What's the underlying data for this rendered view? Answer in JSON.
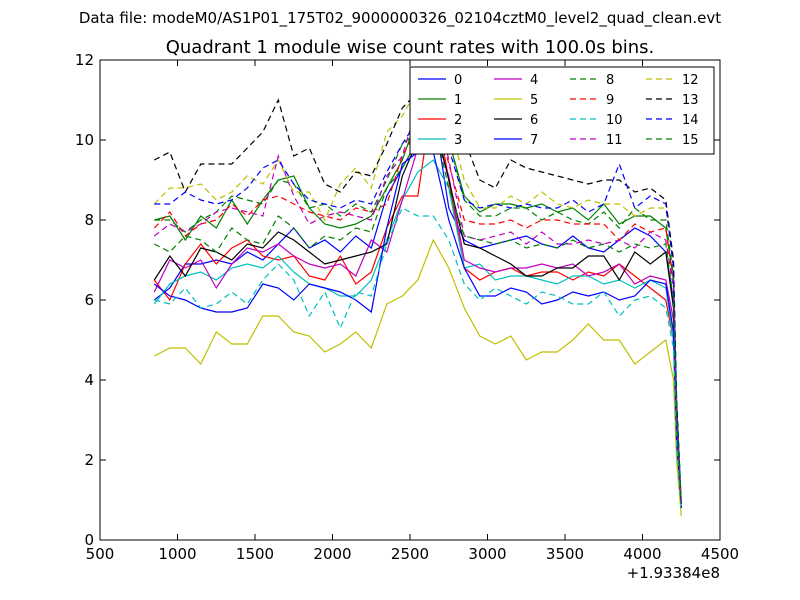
{
  "suptitle": "Data file: modeM0/AS1P01_175T02_9000000326_02104cztM0_level2_quad_clean.evt",
  "chart_data": {
    "type": "line",
    "title": "Quadrant 1 module wise count rates with 100.0s bins.",
    "xlabel": "",
    "ylabel": "",
    "x_offset_label": "+1.93384e8",
    "xlim": [
      500,
      4500
    ],
    "ylim": [
      0,
      12
    ],
    "xticks": [
      500,
      1000,
      1500,
      2000,
      2500,
      3000,
      3500,
      4000,
      4500
    ],
    "yticks": [
      0,
      2,
      4,
      6,
      8,
      10,
      12
    ],
    "legend_position": "top-right",
    "legend_columns": 4,
    "x": [
      850,
      950,
      1050,
      1150,
      1250,
      1350,
      1450,
      1550,
      1650,
      1750,
      1850,
      1950,
      2050,
      2150,
      2250,
      2350,
      2450,
      2550,
      2650,
      2750,
      2850,
      2950,
      3050,
      3150,
      3250,
      3350,
      3450,
      3550,
      3650,
      3750,
      3850,
      3950,
      4050,
      4150,
      4200,
      4220,
      4250
    ],
    "series": [
      {
        "name": "0",
        "color": "#0000ff",
        "dash": "solid",
        "values": [
          6.0,
          6.3,
          6.9,
          6.9,
          7.0,
          6.9,
          7.2,
          7.0,
          7.4,
          7.8,
          7.3,
          7.5,
          7.2,
          7.6,
          7.3,
          8.6,
          9.3,
          10.0,
          10.8,
          8.3,
          7.5,
          7.3,
          7.4,
          7.5,
          7.6,
          7.4,
          7.3,
          7.6,
          7.3,
          7.2,
          7.5,
          7.8,
          7.6,
          7.2,
          6.0,
          3.0,
          0.9
        ]
      },
      {
        "name": "1",
        "color": "#008000",
        "dash": "solid",
        "values": [
          8.0,
          8.1,
          7.5,
          8.1,
          7.8,
          8.5,
          7.9,
          8.5,
          9.0,
          9.1,
          8.3,
          7.9,
          7.8,
          7.9,
          8.1,
          8.8,
          9.5,
          10.6,
          11.5,
          10.0,
          8.6,
          8.2,
          8.4,
          8.4,
          8.3,
          8.4,
          8.2,
          8.3,
          8.0,
          8.4,
          7.9,
          8.1,
          8.1,
          7.8,
          6.5,
          3.5,
          0.9
        ]
      },
      {
        "name": "2",
        "color": "#ff0000",
        "dash": "solid",
        "values": [
          6.5,
          6.0,
          6.9,
          7.4,
          6.9,
          7.3,
          7.5,
          7.1,
          7.0,
          7.1,
          6.6,
          6.5,
          7.1,
          6.4,
          6.7,
          7.8,
          8.6,
          8.6,
          11.2,
          9.0,
          6.8,
          6.5,
          6.7,
          6.8,
          6.6,
          6.7,
          6.7,
          6.5,
          6.7,
          6.6,
          6.9,
          6.6,
          6.3,
          6.0,
          5.0,
          2.5,
          0.9
        ]
      },
      {
        "name": "3",
        "color": "#00bfbf",
        "dash": "solid",
        "values": [
          5.9,
          6.4,
          6.6,
          6.7,
          6.5,
          6.8,
          6.9,
          6.8,
          7.1,
          6.7,
          6.4,
          6.3,
          6.1,
          6.1,
          6.5,
          7.5,
          8.5,
          9.2,
          9.5,
          8.8,
          6.8,
          6.9,
          6.5,
          6.6,
          6.6,
          6.5,
          6.4,
          6.6,
          6.6,
          6.4,
          6.5,
          6.3,
          6.5,
          6.3,
          5.0,
          2.5,
          0.8
        ]
      },
      {
        "name": "4",
        "color": "#bf00bf",
        "dash": "solid",
        "values": [
          6.2,
          7.0,
          6.8,
          7.0,
          6.3,
          6.9,
          7.3,
          7.2,
          7.4,
          7.1,
          6.9,
          6.8,
          6.9,
          6.6,
          7.5,
          7.2,
          8.5,
          9.8,
          10.3,
          9.1,
          7.0,
          6.8,
          6.7,
          6.8,
          6.8,
          6.9,
          6.8,
          6.9,
          6.6,
          6.7,
          6.9,
          6.4,
          6.6,
          6.5,
          5.5,
          2.5,
          0.9
        ]
      },
      {
        "name": "5",
        "color": "#bfbf00",
        "dash": "solid",
        "values": [
          4.6,
          4.8,
          4.8,
          4.4,
          5.2,
          4.9,
          4.9,
          5.6,
          5.6,
          5.2,
          5.1,
          4.7,
          4.9,
          5.2,
          4.8,
          5.9,
          6.1,
          6.5,
          7.5,
          6.8,
          5.8,
          5.1,
          4.9,
          5.1,
          4.5,
          4.7,
          4.7,
          5.0,
          5.4,
          5.0,
          5.0,
          4.4,
          4.7,
          5.0,
          4.0,
          2.0,
          0.6
        ]
      },
      {
        "name": "6",
        "color": "#000000",
        "dash": "solid",
        "values": [
          6.5,
          7.1,
          6.6,
          7.3,
          7.2,
          7.0,
          7.4,
          7.3,
          7.7,
          7.5,
          7.2,
          6.9,
          7.0,
          7.1,
          7.2,
          7.4,
          9.1,
          10.0,
          10.6,
          9.0,
          7.4,
          7.3,
          7.1,
          6.9,
          6.6,
          6.6,
          6.8,
          6.8,
          7.1,
          7.1,
          6.5,
          7.2,
          6.9,
          7.2,
          5.8,
          2.8,
          0.9
        ]
      },
      {
        "name": "7",
        "color": "#0000ff",
        "dash": "solid",
        "values": [
          6.4,
          6.1,
          6.0,
          5.8,
          5.7,
          5.7,
          5.8,
          6.4,
          6.3,
          6.0,
          6.4,
          6.3,
          6.2,
          6.0,
          5.7,
          7.8,
          9.4,
          9.7,
          9.7,
          8.0,
          6.8,
          6.1,
          6.1,
          6.3,
          6.2,
          5.9,
          6.0,
          6.2,
          6.1,
          6.2,
          6.0,
          6.1,
          6.5,
          6.4,
          5.2,
          2.5,
          0.8
        ]
      },
      {
        "name": "8",
        "color": "#008000",
        "dash": "dashed",
        "values": [
          8.0,
          8.0,
          7.7,
          8.0,
          8.2,
          8.6,
          8.5,
          8.4,
          9.0,
          8.9,
          8.3,
          8.4,
          8.1,
          8.4,
          8.2,
          9.0,
          9.9,
          10.2,
          11.2,
          10.0,
          8.5,
          8.1,
          8.1,
          8.3,
          8.3,
          8.0,
          8.2,
          8.0,
          7.9,
          8.2,
          7.8,
          8.3,
          8.0,
          8.0,
          6.6,
          3.4,
          0.9
        ]
      },
      {
        "name": "9",
        "color": "#ff0000",
        "dash": "dashed",
        "values": [
          7.8,
          8.2,
          7.6,
          7.9,
          8.0,
          8.4,
          8.1,
          8.5,
          8.6,
          8.4,
          8.2,
          8.1,
          8.0,
          8.3,
          8.2,
          8.4,
          9.6,
          10.3,
          11.0,
          9.4,
          8.0,
          7.9,
          7.9,
          8.0,
          7.8,
          8.0,
          8.0,
          7.9,
          7.9,
          7.9,
          7.5,
          7.9,
          7.7,
          7.8,
          6.4,
          3.2,
          0.9
        ]
      },
      {
        "name": "10",
        "color": "#00bfbf",
        "dash": "dashed",
        "values": [
          6.0,
          5.9,
          6.3,
          5.8,
          5.9,
          6.2,
          5.9,
          6.5,
          6.9,
          6.5,
          5.6,
          6.2,
          5.3,
          6.2,
          6.1,
          7.4,
          8.3,
          8.1,
          8.1,
          7.5,
          6.4,
          6.0,
          6.3,
          6.1,
          5.9,
          6.2,
          6.1,
          5.9,
          5.9,
          6.2,
          5.6,
          6.0,
          6.1,
          5.8,
          4.8,
          2.4,
          0.8
        ]
      },
      {
        "name": "11",
        "color": "#bf00bf",
        "dash": "dashed",
        "values": [
          7.6,
          7.9,
          7.7,
          7.9,
          8.2,
          8.3,
          8.2,
          8.1,
          9.6,
          8.6,
          7.9,
          8.1,
          8.2,
          8.1,
          8.0,
          9.1,
          9.6,
          10.9,
          11.3,
          9.5,
          7.6,
          7.5,
          7.6,
          7.7,
          7.4,
          7.7,
          7.4,
          7.4,
          7.5,
          7.4,
          7.5,
          7.3,
          7.7,
          7.5,
          6.3,
          3.1,
          0.9
        ]
      },
      {
        "name": "12",
        "color": "#bfbf00",
        "dash": "dashed",
        "values": [
          8.4,
          8.8,
          8.8,
          8.9,
          8.5,
          8.7,
          9.1,
          8.9,
          9.5,
          8.7,
          8.7,
          8.0,
          8.9,
          9.3,
          8.8,
          10.2,
          10.6,
          11.3,
          11.5,
          10.5,
          9.0,
          8.3,
          8.3,
          8.6,
          8.4,
          8.7,
          8.4,
          8.3,
          8.5,
          8.4,
          8.4,
          8.1,
          8.3,
          8.3,
          6.9,
          3.5,
          0.9
        ]
      },
      {
        "name": "13",
        "color": "#000000",
        "dash": "dashed",
        "values": [
          9.5,
          9.7,
          8.7,
          9.4,
          9.4,
          9.4,
          9.8,
          10.2,
          11.0,
          9.6,
          9.8,
          8.9,
          8.7,
          9.2,
          9.1,
          9.9,
          10.8,
          11.2,
          11.4,
          10.3,
          10.0,
          9.0,
          8.8,
          9.5,
          9.3,
          9.2,
          9.1,
          9.0,
          8.9,
          9.0,
          9.0,
          8.7,
          8.8,
          8.5,
          7.0,
          3.5,
          0.9
        ]
      },
      {
        "name": "14",
        "color": "#0000ff",
        "dash": "dashed",
        "values": [
          8.4,
          8.4,
          8.7,
          8.5,
          8.4,
          8.5,
          8.8,
          9.3,
          9.5,
          8.9,
          8.5,
          8.4,
          8.3,
          8.5,
          8.4,
          9.2,
          9.9,
          10.5,
          10.6,
          9.8,
          8.5,
          8.3,
          8.4,
          8.3,
          8.4,
          8.3,
          8.3,
          8.5,
          8.2,
          8.4,
          9.4,
          8.3,
          8.6,
          8.4,
          6.8,
          3.4,
          0.9
        ]
      },
      {
        "name": "15",
        "color": "#008000",
        "dash": "dashed",
        "values": [
          7.4,
          7.2,
          7.6,
          7.5,
          7.2,
          7.8,
          7.5,
          7.4,
          8.1,
          7.8,
          7.3,
          7.6,
          7.5,
          7.8,
          7.7,
          8.8,
          9.3,
          10.0,
          10.5,
          8.8,
          7.6,
          7.5,
          7.4,
          7.5,
          7.3,
          7.4,
          7.3,
          7.5,
          7.3,
          7.4,
          7.2,
          7.4,
          7.3,
          7.4,
          6.0,
          3.0,
          0.9
        ]
      }
    ]
  }
}
